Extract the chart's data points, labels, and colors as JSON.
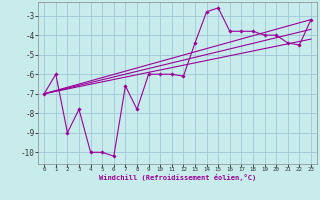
{
  "xlabel": "Windchill (Refroidissement éolien,°C)",
  "background_color": "#c8ecec",
  "grid_color": "#a0c8d8",
  "line_color": "#9b009b",
  "xlim": [
    -0.5,
    23.5
  ],
  "ylim": [
    -10.6,
    -2.3
  ],
  "xticks": [
    0,
    1,
    2,
    3,
    4,
    5,
    6,
    7,
    8,
    9,
    10,
    11,
    12,
    13,
    14,
    15,
    16,
    17,
    18,
    19,
    20,
    21,
    22,
    23
  ],
  "yticks": [
    -10,
    -9,
    -8,
    -7,
    -6,
    -5,
    -4,
    -3
  ],
  "series1_x": [
    0,
    1,
    2,
    3,
    4,
    5,
    6,
    7,
    8,
    9,
    10,
    11,
    12,
    13,
    14,
    15,
    16,
    17,
    18,
    19,
    20,
    21,
    22,
    23
  ],
  "series1_y": [
    -7.0,
    -6.0,
    -9.0,
    -7.8,
    -10.0,
    -10.0,
    -10.2,
    -6.6,
    -7.8,
    -6.0,
    -6.0,
    -6.0,
    -6.1,
    -4.4,
    -2.8,
    -2.6,
    -3.8,
    -3.8,
    -3.8,
    -4.0,
    -4.0,
    -4.4,
    -4.5,
    -3.2
  ],
  "series2_x": [
    0,
    23
  ],
  "series2_y": [
    -7.0,
    -3.2
  ],
  "series3_x": [
    0,
    23
  ],
  "series3_y": [
    -7.0,
    -3.7
  ],
  "series4_x": [
    0,
    23
  ],
  "series4_y": [
    -7.0,
    -4.2
  ]
}
